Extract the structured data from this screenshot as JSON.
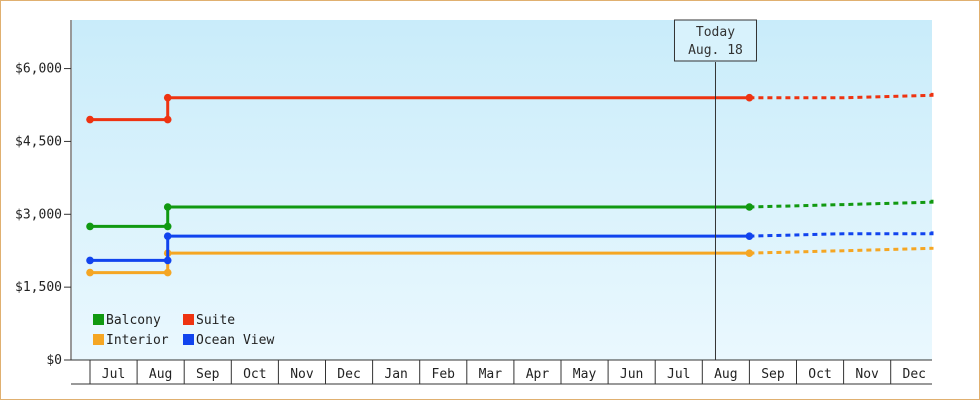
{
  "chart_data": {
    "type": "line",
    "title": "",
    "xlabel": "",
    "ylabel": "",
    "x_categories": [
      "Jul",
      "Aug",
      "Sep",
      "Oct",
      "Nov",
      "Dec",
      "Jan",
      "Feb",
      "Mar",
      "Apr",
      "May",
      "Jun",
      "Jul",
      "Aug",
      "Sep",
      "Oct",
      "Nov",
      "Dec"
    ],
    "ylim": [
      0,
      7000
    ],
    "yticks": [
      0,
      1500,
      3000,
      4500,
      6000
    ],
    "ytick_labels": [
      "$0",
      "$1,500",
      "$3,000",
      "$4,500",
      "$6,000"
    ],
    "grid": false,
    "legend_position": "bottom-left",
    "today_marker": {
      "line1": "Today",
      "line2": "Aug. 18",
      "x_index": 14
    },
    "series": [
      {
        "name": "Balcony",
        "color": "#119911",
        "points": [
          [
            0,
            2750
          ],
          [
            1.65,
            2750
          ],
          [
            1.65,
            3150
          ],
          [
            14,
            3150
          ]
        ],
        "markers": [
          [
            0,
            2750
          ],
          [
            1.65,
            2750
          ],
          [
            1.65,
            3150
          ],
          [
            14,
            3150
          ]
        ],
        "forecast": [
          [
            14,
            3150
          ],
          [
            16,
            3200
          ],
          [
            18.5,
            3250
          ],
          [
            19.5,
            3300
          ]
        ]
      },
      {
        "name": "Suite",
        "color": "#ee3311",
        "points": [
          [
            0,
            4950
          ],
          [
            1.65,
            4950
          ],
          [
            1.65,
            5400
          ],
          [
            14,
            5400
          ]
        ],
        "markers": [
          [
            0,
            4950
          ],
          [
            1.65,
            4950
          ],
          [
            1.65,
            5400
          ],
          [
            14,
            5400
          ]
        ],
        "forecast": [
          [
            14,
            5400
          ],
          [
            16,
            5400
          ],
          [
            18.5,
            5450
          ],
          [
            19.5,
            5500
          ]
        ]
      },
      {
        "name": "Interior",
        "color": "#f5a623",
        "points": [
          [
            0,
            1800
          ],
          [
            1.65,
            1800
          ],
          [
            1.65,
            2200
          ],
          [
            14,
            2200
          ]
        ],
        "markers": [
          [
            0,
            1800
          ],
          [
            1.65,
            1800
          ],
          [
            1.65,
            2200
          ],
          [
            14,
            2200
          ]
        ],
        "forecast": [
          [
            14,
            2200
          ],
          [
            16,
            2250
          ],
          [
            18.5,
            2300
          ],
          [
            19.5,
            2330
          ]
        ]
      },
      {
        "name": "Ocean View",
        "color": "#1144ee",
        "points": [
          [
            0,
            2050
          ],
          [
            1.65,
            2050
          ],
          [
            1.65,
            2550
          ],
          [
            14,
            2550
          ]
        ],
        "markers": [
          [
            0,
            2050
          ],
          [
            1.65,
            2050
          ],
          [
            1.65,
            2550
          ],
          [
            14,
            2550
          ]
        ],
        "forecast": [
          [
            14,
            2550
          ],
          [
            16,
            2600
          ],
          [
            18.5,
            2600
          ],
          [
            19.5,
            2650
          ]
        ]
      }
    ]
  }
}
